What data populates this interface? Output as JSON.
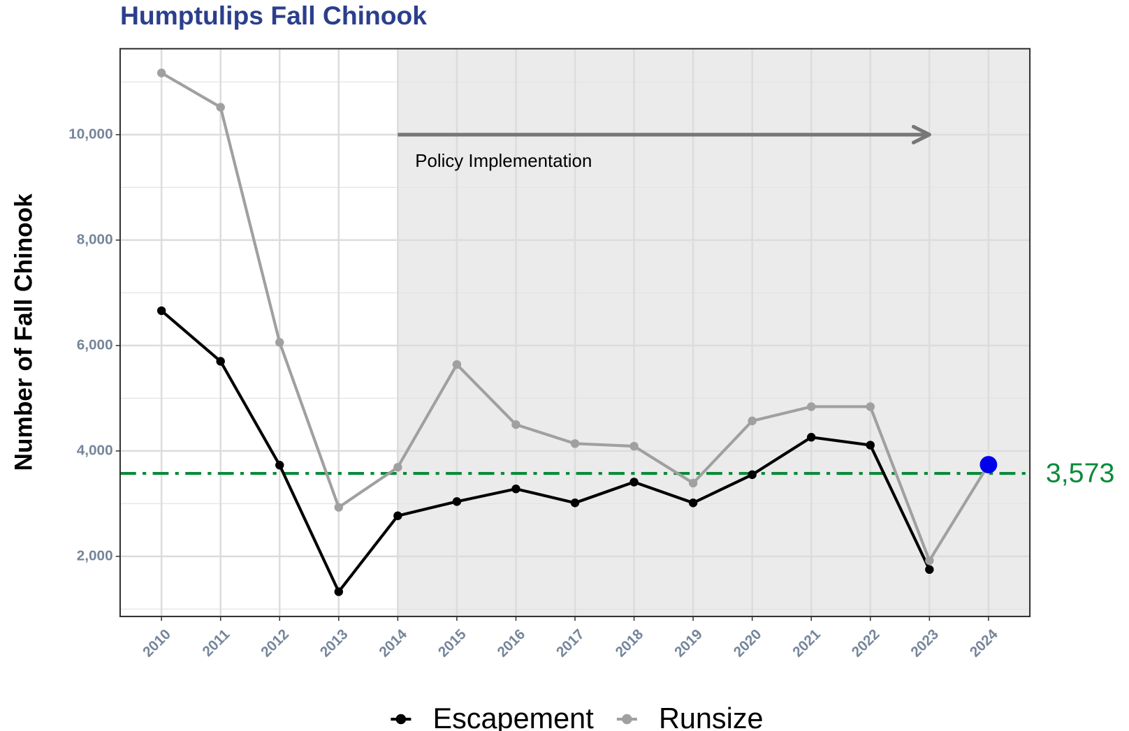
{
  "chart_data": {
    "type": "line",
    "title": "Humptulips Fall Chinook",
    "y_label": "Number of Fall Chinook",
    "x": [
      2010,
      2011,
      2012,
      2013,
      2014,
      2015,
      2016,
      2017,
      2018,
      2019,
      2020,
      2021,
      2022,
      2023,
      2024
    ],
    "series": [
      {
        "name": "Escapement",
        "color": "#000000",
        "values": [
          6660,
          5700,
          3730,
          1330,
          2770,
          3040,
          3280,
          3015,
          3410,
          3015,
          3550,
          4260,
          4110,
          1750,
          null
        ]
      },
      {
        "name": "Runsize",
        "color": "#a0a0a0",
        "values": [
          11170,
          10520,
          6060,
          2930,
          3690,
          5640,
          4500,
          4140,
          4090,
          3390,
          4570,
          4840,
          4840,
          1920,
          3740
        ],
        "highlight_index": 14,
        "highlight_color": "#0000ee"
      }
    ],
    "reference_line": {
      "value": 3573,
      "label": "3,573",
      "color": "#0a8a3a"
    },
    "shade_from": 2014,
    "annotation": {
      "text": "Policy Implementation",
      "x_start": 2014,
      "x_end": 2023,
      "y": 10000,
      "color": "#777777"
    },
    "xlim": [
      2009.3,
      2024.7
    ],
    "xticks": [
      2010,
      2011,
      2012,
      2013,
      2014,
      2015,
      2016,
      2017,
      2018,
      2019,
      2020,
      2021,
      2022,
      2023,
      2024
    ],
    "ylim": [
      860,
      11630
    ],
    "yticks": [
      {
        "value": 2000,
        "label": "2,000"
      },
      {
        "value": 4000,
        "label": "4,000"
      },
      {
        "value": 6000,
        "label": "6,000"
      },
      {
        "value": 8000,
        "label": "8,000"
      },
      {
        "value": 10000,
        "label": "10,000"
      }
    ],
    "yminor": [
      1000,
      3000,
      5000,
      7000,
      9000,
      11000
    ],
    "grid": true,
    "legend": "bottom"
  }
}
